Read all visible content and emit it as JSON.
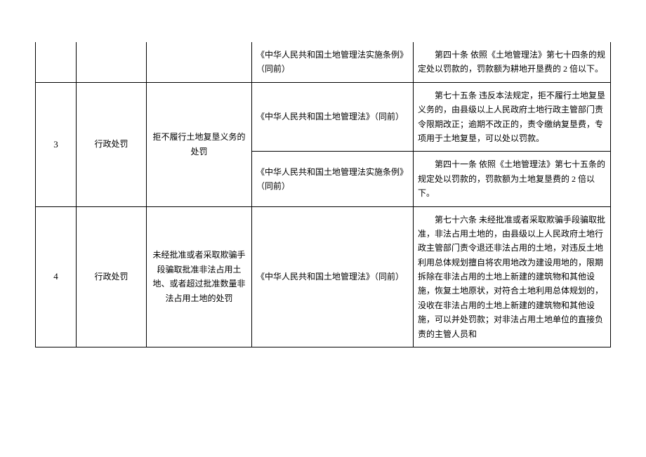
{
  "table": {
    "row1": {
      "basis": "《中华人民共和国土地管理法实施条例》（同前）",
      "content": "第四十条 依照《土地管理法》第七十四条的规定处以罚款的，罚款额为耕地开垦费的 2 倍以下。"
    },
    "row2": {
      "num": "3",
      "type": "行政处罚",
      "item": "拒不履行土地复垦义务的处罚",
      "basis_a": "《中华人民共和国土地管理法》（同前）",
      "content_a": "第七十五条 违反本法规定，拒不履行土地复垦义务的，由县级以上人民政府土地行政主管部门责令限期改正；逾期不改正的，责令缴纳复垦费，专项用于土地复垦，可以处以罚款。",
      "basis_b": "《中华人民共和国土地管理法实施条例》（同前）",
      "content_b": "第四十一条 依照《土地管理法》第七十五条的规定处以罚款的，罚款额为土地复垦费的 2 倍以下。"
    },
    "row3": {
      "num": "4",
      "type": "行政处罚",
      "item": "未经批准或者采取欺骗手段骗取批准非法占用土地、或者超过批准数量非法占用土地的处罚",
      "basis": "《中华人民共和国土地管理法》（同前）",
      "content": "第七十六条 未经批准或者采取欺骗手段骗取批准，非法占用土地的，由县级以上人民政府土地行政主管部门责令退还非法占用的土地，对违反土地利用总体规划擅自将农用地改为建设用地的，限期拆除在非法占用的土地上新建的建筑物和其他设施，恢复土地原状，对符合土地利用总体规划的，没收在非法占用的土地上新建的建筑物和其他设施，可以并处罚款；对非法占用土地单位的直接负责的主管人员和"
    }
  }
}
